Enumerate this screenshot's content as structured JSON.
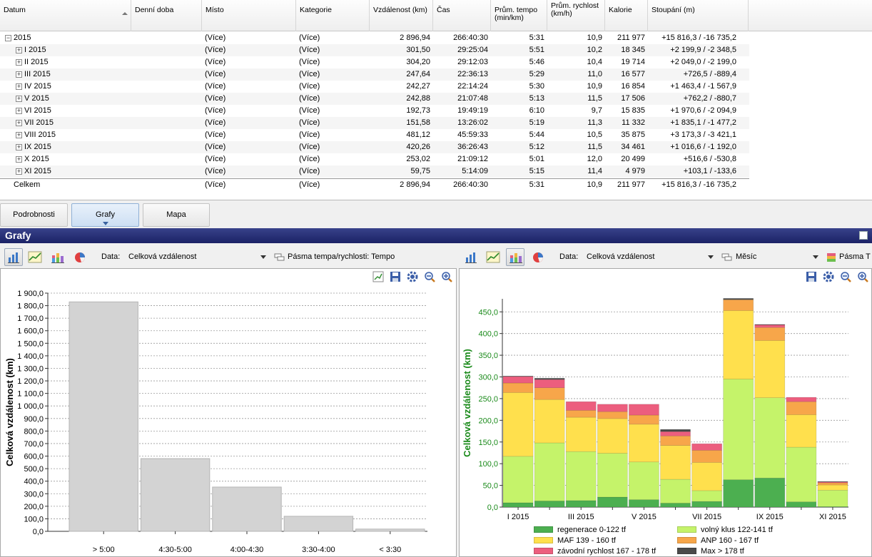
{
  "table": {
    "columns": [
      {
        "key": "datum",
        "label": "Datum"
      },
      {
        "key": "doba",
        "label": "Denní doba"
      },
      {
        "key": "misto",
        "label": "Místo"
      },
      {
        "key": "kategorie",
        "label": "Kategorie"
      },
      {
        "key": "vzdalenost",
        "label": "Vzdálenost (km)"
      },
      {
        "key": "cas",
        "label": "Čas"
      },
      {
        "key": "tempo",
        "label": "Prům. tempo (min/km)"
      },
      {
        "key": "rychlost",
        "label": "Prům. rychlost (km/h)"
      },
      {
        "key": "kalorie",
        "label": "Kalorie"
      },
      {
        "key": "stoupani",
        "label": "Stoupání (m)"
      }
    ],
    "rows": [
      {
        "datum": "2015",
        "expander": "−",
        "level": 0,
        "misto": "(Více)",
        "kategorie": "(Více)",
        "vzdalenost": "2 896,94",
        "cas": "266:40:30",
        "tempo": "5:31",
        "rychlost": "10,9",
        "kalorie": "211 977",
        "stoupani": "+15 816,3 / -16 735,2"
      },
      {
        "datum": "I 2015",
        "expander": "+",
        "level": 1,
        "misto": "(Více)",
        "kategorie": "(Více)",
        "vzdalenost": "301,50",
        "cas": "29:25:04",
        "tempo": "5:51",
        "rychlost": "10,2",
        "kalorie": "18 345",
        "stoupani": "+2 199,9 / -2 348,5"
      },
      {
        "datum": "II 2015",
        "expander": "+",
        "level": 1,
        "misto": "(Více)",
        "kategorie": "(Více)",
        "vzdalenost": "304,20",
        "cas": "29:12:03",
        "tempo": "5:46",
        "rychlost": "10,4",
        "kalorie": "19 714",
        "stoupani": "+2 049,0 / -2 199,0"
      },
      {
        "datum": "III 2015",
        "expander": "+",
        "level": 1,
        "misto": "(Více)",
        "kategorie": "(Více)",
        "vzdalenost": "247,64",
        "cas": "22:36:13",
        "tempo": "5:29",
        "rychlost": "11,0",
        "kalorie": "16 577",
        "stoupani": "+726,5 / -889,4"
      },
      {
        "datum": "IV 2015",
        "expander": "+",
        "level": 1,
        "misto": "(Více)",
        "kategorie": "(Více)",
        "vzdalenost": "242,27",
        "cas": "22:14:24",
        "tempo": "5:30",
        "rychlost": "10,9",
        "kalorie": "16 854",
        "stoupani": "+1 463,4 / -1 567,9"
      },
      {
        "datum": "V 2015",
        "expander": "+",
        "level": 1,
        "misto": "(Více)",
        "kategorie": "(Více)",
        "vzdalenost": "242,88",
        "cas": "21:07:48",
        "tempo": "5:13",
        "rychlost": "11,5",
        "kalorie": "17 506",
        "stoupani": "+762,2 / -880,7"
      },
      {
        "datum": "VI 2015",
        "expander": "+",
        "level": 1,
        "misto": "(Více)",
        "kategorie": "(Více)",
        "vzdalenost": "192,73",
        "cas": "19:49:19",
        "tempo": "6:10",
        "rychlost": "9,7",
        "kalorie": "15 835",
        "stoupani": "+1 970,6 / -2 094,9"
      },
      {
        "datum": "VII 2015",
        "expander": "+",
        "level": 1,
        "misto": "(Více)",
        "kategorie": "(Více)",
        "vzdalenost": "151,58",
        "cas": "13:26:02",
        "tempo": "5:19",
        "rychlost": "11,3",
        "kalorie": "11 332",
        "stoupani": "+1 835,1 / -1 477,2"
      },
      {
        "datum": "VIII 2015",
        "expander": "+",
        "level": 1,
        "misto": "(Více)",
        "kategorie": "(Více)",
        "vzdalenost": "481,12",
        "cas": "45:59:33",
        "tempo": "5:44",
        "rychlost": "10,5",
        "kalorie": "35 875",
        "stoupani": "+3 173,3 / -3 421,1"
      },
      {
        "datum": "IX 2015",
        "expander": "+",
        "level": 1,
        "misto": "(Více)",
        "kategorie": "(Více)",
        "vzdalenost": "420,26",
        "cas": "36:26:43",
        "tempo": "5:12",
        "rychlost": "11,5",
        "kalorie": "34 461",
        "stoupani": "+1 016,6 / -1 192,0"
      },
      {
        "datum": "X 2015",
        "expander": "+",
        "level": 1,
        "misto": "(Více)",
        "kategorie": "(Více)",
        "vzdalenost": "253,02",
        "cas": "21:09:12",
        "tempo": "5:01",
        "rychlost": "12,0",
        "kalorie": "20 499",
        "stoupani": "+516,6 / -530,8"
      },
      {
        "datum": "XI 2015",
        "expander": "+",
        "level": 1,
        "misto": "(Více)",
        "kategorie": "(Více)",
        "vzdalenost": "59,75",
        "cas": "5:14:09",
        "tempo": "5:15",
        "rychlost": "11,4",
        "kalorie": "4 979",
        "stoupani": "+103,1 / -133,6"
      }
    ],
    "total": {
      "datum": "Celkem",
      "misto": "(Více)",
      "kategorie": "(Více)",
      "vzdalenost": "2 896,94",
      "cas": "266:40:30",
      "tempo": "5:31",
      "rychlost": "10,9",
      "kalorie": "211 977",
      "stoupani": "+15 816,3 / -16 735,2"
    }
  },
  "tabs": {
    "details": "Podrobnosti",
    "charts": "Grafy",
    "map": "Mapa"
  },
  "section_title": "Grafy",
  "left_toolbar": {
    "data_label": "Data:",
    "data_value": "Celková vzdálenost",
    "zones_value": "Pásma tempa/rychlosti: Tempo"
  },
  "right_toolbar": {
    "data_label": "Data:",
    "data_value": "Celková vzdálenost",
    "period_value": "Měsíc",
    "zones_value": "Pásma T"
  },
  "icons": {
    "chart_types": [
      "bar-chart-icon",
      "line-chart-icon",
      "stacked-bar-chart-icon",
      "pie-chart-icon"
    ],
    "panel_tools": [
      "save-icon",
      "settings-icon",
      "zoom-out-icon",
      "zoom-in-icon"
    ]
  },
  "chart_data": [
    {
      "type": "bar",
      "ylabel": "Celková vzdálenost (km)",
      "ylim": [
        0,
        1900
      ],
      "yticks": [
        "0,0",
        "100,0",
        "200,0",
        "300,0",
        "400,0",
        "500,0",
        "600,0",
        "700,0",
        "800,0",
        "900,0",
        "1 000,0",
        "1 100,0",
        "1 200,0",
        "1 300,0",
        "1 400,0",
        "1 500,0",
        "1 600,0",
        "1 700,0",
        "1 800,0",
        "1 900,0"
      ],
      "categories": [
        "> 5:00",
        "4:30-5:00",
        "4:00-4:30",
        "3:30-4:00",
        "< 3:30"
      ],
      "values": [
        1830,
        580,
        353,
        120,
        18
      ],
      "grid": true,
      "bar_color": "#d3d3d3"
    },
    {
      "type": "bar",
      "stacked": true,
      "ylabel": "Celková vzdálenost (km)",
      "ylim": [
        0,
        480
      ],
      "yticks": [
        "0,0",
        "50,0",
        "100,0",
        "150,0",
        "200,0",
        "250,0",
        "300,0",
        "350,0",
        "400,0",
        "450,0"
      ],
      "categories": [
        "I 2015",
        "II 2015",
        "III 2015",
        "IV 2015",
        "V 2015",
        "VI 2015",
        "VII 2015",
        "VIII 2015",
        "IX 2015",
        "X 2015",
        "XI 2015"
      ],
      "xtick_labels": [
        "I 2015",
        "III 2015",
        "V 2015",
        "VII 2015",
        "IX 2015",
        "XI 2015"
      ],
      "legend_position": "bottom",
      "series": [
        {
          "name": "regenerace 0-122 tf",
          "color": "#4caf50",
          "values": [
            10,
            14,
            15,
            23,
            17,
            9,
            13,
            63,
            67,
            12,
            1
          ]
        },
        {
          "name": "volný klus 122-141 tf",
          "color": "#c5f36a",
          "values": [
            107,
            134,
            113,
            101,
            87,
            55,
            25,
            232,
            185,
            126,
            38
          ]
        },
        {
          "name": "MAF 139 - 160 tf",
          "color": "#ffe04d",
          "values": [
            147,
            100,
            79,
            80,
            87,
            78,
            65,
            158,
            132,
            75,
            12
          ]
        },
        {
          "name": "ANP 160 - 167 tf",
          "color": "#f7a64a",
          "values": [
            22,
            27,
            16,
            16,
            21,
            22,
            28,
            25,
            30,
            30,
            5
          ]
        },
        {
          "name": "závodní rychlost 167 - 178 tf",
          "color": "#ec5e7e",
          "values": [
            15,
            19,
            20,
            17,
            25,
            10,
            15,
            0,
            6,
            10,
            2
          ]
        },
        {
          "name": "Max > 178 tf",
          "color": "#4a4a4a",
          "values": [
            1,
            3,
            0,
            0,
            0,
            5,
            0,
            3,
            1,
            0,
            1
          ]
        }
      ]
    }
  ]
}
